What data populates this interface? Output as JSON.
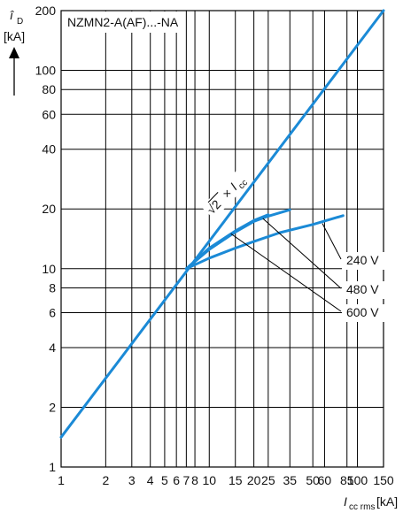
{
  "chart_data": {
    "type": "line",
    "title": "NZMN2-A(AF)...-NA",
    "y_axis": {
      "symbol": "î",
      "subscript": "D",
      "unit": "[kA]",
      "scale": "log",
      "ylim": [
        1,
        200
      ],
      "ticks": [
        1,
        2,
        4,
        6,
        8,
        10,
        20,
        40,
        60,
        80,
        100,
        200
      ]
    },
    "x_axis": {
      "symbol": "I",
      "subscript": "cc rms",
      "unit": "[kA]",
      "scale": "log",
      "xlim": [
        1,
        150
      ],
      "ticks": [
        1,
        2,
        3,
        4,
        5,
        6,
        7,
        8,
        10,
        15,
        20,
        25,
        35,
        50,
        60,
        85,
        100,
        150
      ],
      "tick_labels": [
        "1",
        "2",
        "3",
        "4",
        "5",
        "6",
        "7",
        "8",
        "10",
        "15",
        "20",
        "25",
        "35",
        "50",
        "60",
        "85",
        "100",
        "150"
      ]
    },
    "grid": true,
    "series": [
      {
        "name": "√2 × Icc",
        "x": [
          1,
          150
        ],
        "y": [
          1.414,
          200
        ],
        "label_parts": {
          "root": "√2",
          "times": "×",
          "i": "I",
          "sub": "cc"
        }
      },
      {
        "name": "240 V",
        "x": [
          7,
          10,
          15,
          20,
          30,
          50,
          80
        ],
        "y": [
          10,
          11.3,
          12.7,
          13.7,
          15.2,
          16.7,
          18.5
        ]
      },
      {
        "name": "480 V",
        "x": [
          7,
          10,
          15,
          20,
          25,
          35
        ],
        "y": [
          10,
          12.5,
          15.3,
          17.3,
          18.4,
          19.8
        ]
      },
      {
        "name": "600 V",
        "x": [
          7,
          10,
          15,
          20,
          25
        ],
        "y": [
          10,
          12.7,
          15.5,
          17.5,
          18.7
        ]
      }
    ],
    "annotations": [
      "240 V",
      "480 V",
      "600 V"
    ]
  }
}
